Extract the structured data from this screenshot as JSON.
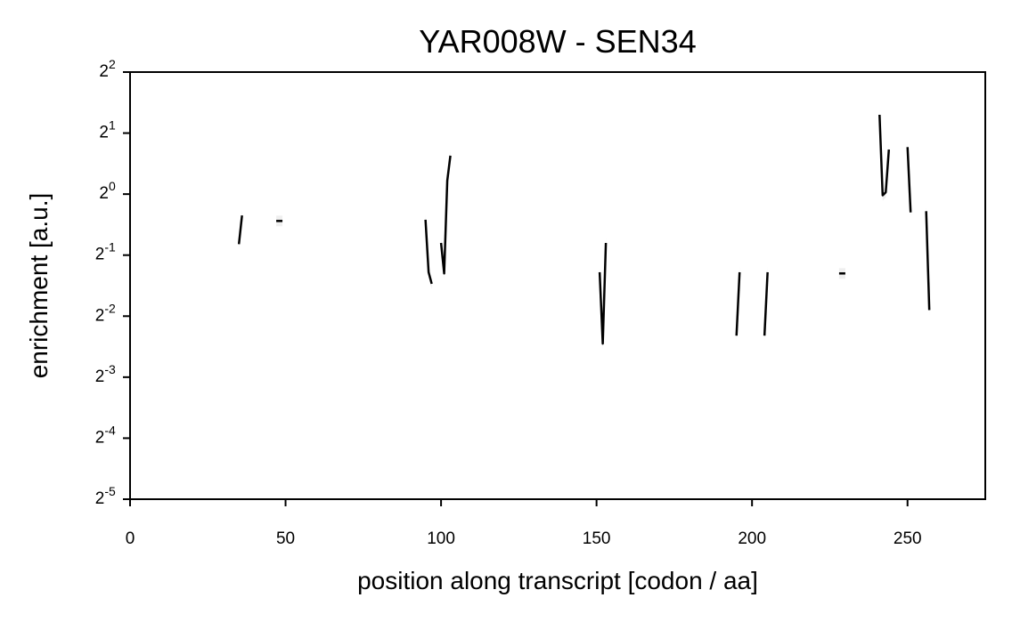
{
  "chart_data": {
    "type": "line",
    "title": "YAR008W - SEN34",
    "xlabel": "position along transcript [codon / aa]",
    "ylabel": "enrichment [a.u.]",
    "xlim": [
      0,
      275
    ],
    "ylim_log2": [
      -5,
      2
    ],
    "y_scale": "log2",
    "x_ticks": [
      0,
      50,
      100,
      150,
      200,
      250
    ],
    "x_tick_labels": [
      "0",
      "50",
      "100",
      "150",
      "200",
      "250"
    ],
    "y_ticks_log2": [
      -5,
      -4,
      -3,
      -2,
      -1,
      0,
      1,
      2
    ],
    "y_tick_labels": [
      {
        "base": "2",
        "exp": "-5"
      },
      {
        "base": "2",
        "exp": "-4"
      },
      {
        "base": "2",
        "exp": "-3"
      },
      {
        "base": "2",
        "exp": "-2"
      },
      {
        "base": "2",
        "exp": "-1"
      },
      {
        "base": "2",
        "exp": "0"
      },
      {
        "base": "2",
        "exp": "1"
      },
      {
        "base": "2",
        "exp": "2"
      }
    ],
    "grid": false,
    "line_color": "#000000",
    "band_color": "#d0d0d0",
    "series": [
      {
        "segments": [
          {
            "x": [
              35,
              36
            ],
            "y_log2": [
              -0.82,
              -0.35
            ]
          },
          {
            "x": [
              47,
              49
            ],
            "y_log2": [
              -0.44,
              -0.44
            ]
          },
          {
            "x": [
              95,
              96,
              97
            ],
            "y_log2": [
              -0.42,
              -1.28,
              -1.47
            ]
          },
          {
            "x": [
              100,
              101,
              102,
              103
            ],
            "y_log2": [
              -0.8,
              -1.3,
              0.22,
              0.63
            ]
          },
          {
            "x": [
              151,
              152,
              153
            ],
            "y_log2": [
              -1.28,
              -2.45,
              -0.8
            ]
          },
          {
            "x": [
              195,
              196
            ],
            "y_log2": [
              -2.32,
              -1.28
            ]
          },
          {
            "x": [
              204,
              205
            ],
            "y_log2": [
              -2.32,
              -1.28
            ]
          },
          {
            "x": [
              228,
              230
            ],
            "y_log2": [
              -1.3,
              -1.3
            ]
          },
          {
            "x": [
              241,
              242,
              243,
              244
            ],
            "y_log2": [
              1.3,
              -0.02,
              0.03,
              0.73
            ]
          },
          {
            "x": [
              250,
              251
            ],
            "y_log2": [
              0.77,
              -0.3
            ]
          },
          {
            "x": [
              256,
              257
            ],
            "y_log2": [
              -0.28,
              -1.9
            ]
          }
        ]
      }
    ]
  }
}
